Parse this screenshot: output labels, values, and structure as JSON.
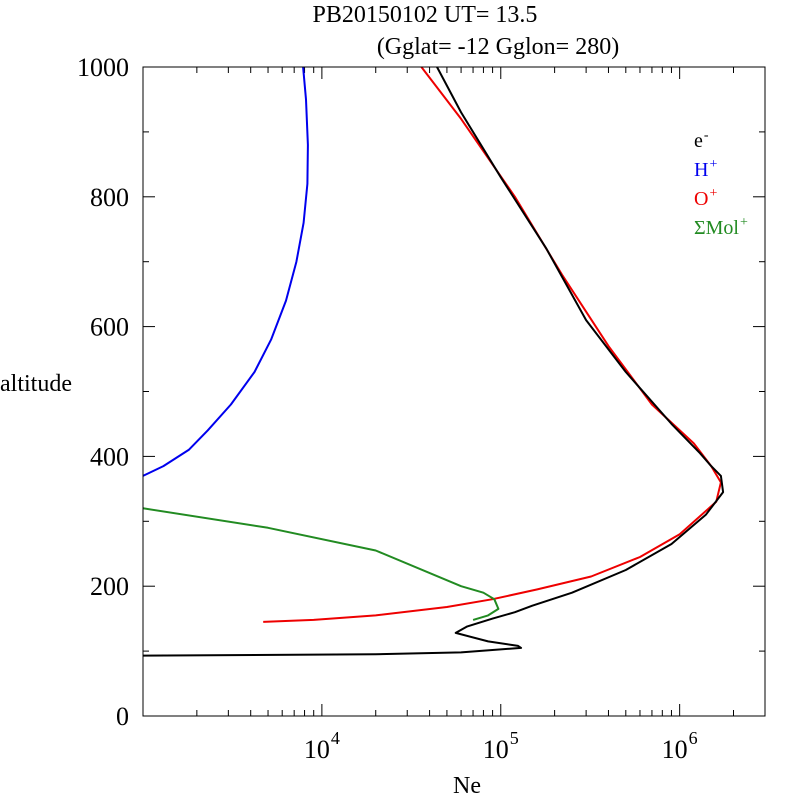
{
  "chart_data": {
    "type": "line",
    "title_line1": "PB20150102   UT=  13.5",
    "title_line2": "(Gglat= -12   Gglon=  280)",
    "xlabel": "Ne",
    "ylabel": "altitude",
    "x_scale": "log",
    "xlim": [
      1000,
      3000000
    ],
    "ylim": [
      0,
      1000
    ],
    "y_major_ticks": [
      0,
      200,
      400,
      600,
      800,
      1000
    ],
    "y_tick_labels": [
      "0",
      "200",
      "400",
      "600",
      "800",
      "1000"
    ],
    "x_major_ticks": [
      {
        "value": 10000,
        "base": "10",
        "exp": "4"
      },
      {
        "value": 100000,
        "base": "10",
        "exp": "5"
      },
      {
        "value": 1000000,
        "base": "10",
        "exp": "6"
      }
    ],
    "legend_position": "top-right",
    "legend": [
      {
        "key": "electrons",
        "base": "e",
        "sup": "-",
        "color": "#000000"
      },
      {
        "key": "hydrogen",
        "base": "H",
        "sup": "+",
        "color": "#0000ee"
      },
      {
        "key": "oxygen",
        "base": "O",
        "sup": "+",
        "color": "#ee0000"
      },
      {
        "key": "molecular",
        "base": "ΣMol",
        "sup": "+",
        "color": "#228b22"
      }
    ],
    "series": [
      {
        "name": "H+",
        "color": "#0000ee",
        "points": [
          [
            1000,
            370
          ],
          [
            1300,
            385
          ],
          [
            1800,
            410
          ],
          [
            2300,
            440
          ],
          [
            3100,
            480
          ],
          [
            4200,
            530
          ],
          [
            5200,
            580
          ],
          [
            6300,
            640
          ],
          [
            7200,
            700
          ],
          [
            7900,
            760
          ],
          [
            8300,
            820
          ],
          [
            8350,
            880
          ],
          [
            8150,
            950
          ],
          [
            7850,
            1000
          ]
        ]
      },
      {
        "name": "O+",
        "color": "#ee0000",
        "points": [
          [
            4700,
            145
          ],
          [
            9000,
            148
          ],
          [
            20000,
            155
          ],
          [
            50000,
            168
          ],
          [
            90000,
            180
          ],
          [
            160000,
            195
          ],
          [
            320000,
            215
          ],
          [
            600000,
            245
          ],
          [
            1000000,
            280
          ],
          [
            1600000,
            330
          ],
          [
            1700000,
            360
          ],
          [
            1500000,
            385
          ],
          [
            1200000,
            420
          ],
          [
            700000,
            480
          ],
          [
            400000,
            570
          ],
          [
            220000,
            680
          ],
          [
            120000,
            800
          ],
          [
            60000,
            920
          ],
          [
            36000,
            1000
          ]
        ]
      },
      {
        "name": "ΣMol+",
        "color": "#228b22",
        "points": [
          [
            1000,
            320
          ],
          [
            5000,
            290
          ],
          [
            20000,
            255
          ],
          [
            60000,
            200
          ],
          [
            80000,
            190
          ],
          [
            92000,
            180
          ],
          [
            97000,
            165
          ],
          [
            85000,
            155
          ],
          [
            70000,
            148
          ]
        ]
      },
      {
        "name": "e-",
        "color": "#000000",
        "points": [
          [
            1000,
            93
          ],
          [
            20000,
            95
          ],
          [
            60000,
            98
          ],
          [
            130000,
            105
          ],
          [
            125000,
            108
          ],
          [
            85000,
            115
          ],
          [
            56000,
            128
          ],
          [
            65000,
            138
          ],
          [
            90000,
            150
          ],
          [
            120000,
            160
          ],
          [
            150000,
            170
          ],
          [
            250000,
            190
          ],
          [
            500000,
            225
          ],
          [
            900000,
            265
          ],
          [
            1400000,
            310
          ],
          [
            1750000,
            345
          ],
          [
            1700000,
            370
          ],
          [
            1500000,
            385
          ],
          [
            1300000,
            405
          ],
          [
            900000,
            450
          ],
          [
            500000,
            530
          ],
          [
            300000,
            610
          ],
          [
            180000,
            720
          ],
          [
            100000,
            830
          ],
          [
            60000,
            930
          ],
          [
            44000,
            1000
          ]
        ]
      }
    ]
  }
}
